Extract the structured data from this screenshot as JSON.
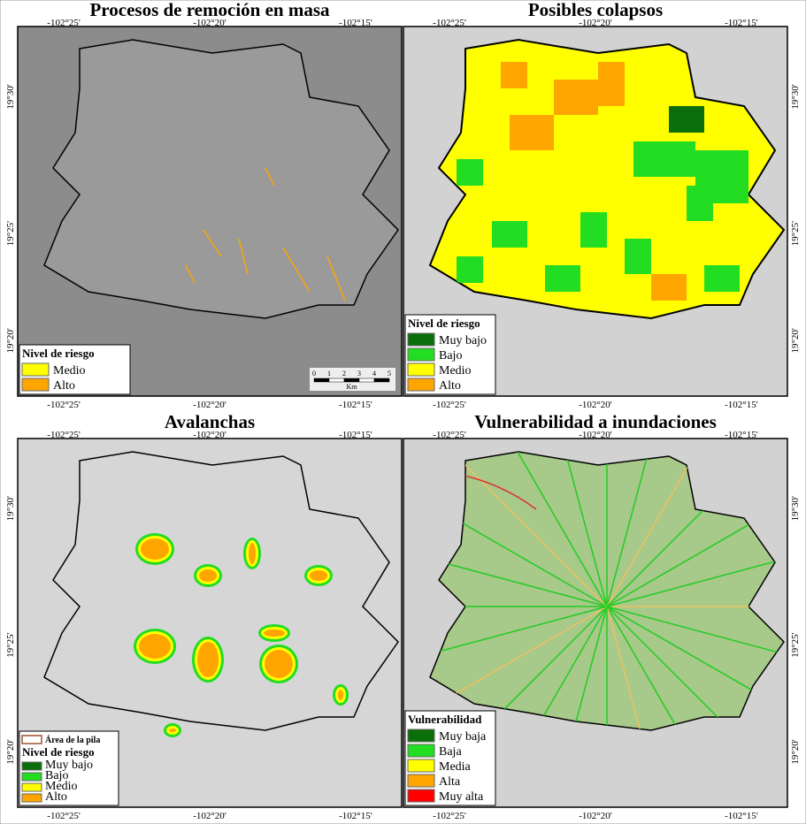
{
  "panels": [
    {
      "title": "Procesos de remoción en masa",
      "top_ticks": [
        "-102°25'",
        "-102°20'",
        "-102°15'"
      ],
      "bottom_ticks": [
        "-102°25'",
        "-102°20'",
        "-102°15'"
      ],
      "side_ticks": [
        "19°30'",
        "19°25'",
        "19°20'"
      ],
      "legend": {
        "title": "Nivel de riesgo",
        "items": [
          {
            "label": "Medio",
            "color": "#ffff00"
          },
          {
            "label": "Alto",
            "color": "#ffa500"
          }
        ]
      },
      "scale": {
        "ticks": [
          "0",
          "1",
          "2",
          "3",
          "4",
          "5"
        ],
        "unit": "Km"
      }
    },
    {
      "title": "Posibles colapsos",
      "top_ticks": [
        "-102°25'",
        "-102°20'",
        "-102°15'"
      ],
      "bottom_ticks": [
        "-102°25'",
        "-102°20'",
        "-102°15'"
      ],
      "side_ticks": [
        "19°30'",
        "19°25'",
        "19°20'"
      ],
      "legend": {
        "title": "Nivel de riesgo",
        "items": [
          {
            "label": "Muy bajo",
            "color": "#0a6e0a"
          },
          {
            "label": "Bajo",
            "color": "#22dd22"
          },
          {
            "label": "Medio",
            "color": "#ffff00"
          },
          {
            "label": "Alto",
            "color": "#ffa500"
          }
        ]
      }
    },
    {
      "title": "Avalanchas",
      "top_ticks": [
        "-102°25'",
        "-102°20'",
        "-102°15'"
      ],
      "bottom_ticks": [
        "-102°25'",
        "-102°20'",
        "-102°15'"
      ],
      "side_ticks": [
        "19°30'",
        "19°25'",
        "19°20'"
      ],
      "pile": {
        "label": "Área de la pila",
        "color": "#a0522d"
      },
      "legend": {
        "title": "Nivel de riesgo",
        "items": [
          {
            "label": "Muy bajo",
            "color": "#0a6e0a"
          },
          {
            "label": "Bajo",
            "color": "#22dd22"
          },
          {
            "label": "Medio",
            "color": "#ffff00"
          },
          {
            "label": "Alto",
            "color": "#ffa500"
          }
        ]
      }
    },
    {
      "title": "Vulnerabilidad a inundaciones",
      "top_ticks": [
        "-102°25'",
        "-102°20'",
        "-102°15'"
      ],
      "bottom_ticks": [
        "-102°25'",
        "-102°20'",
        "-102°15'"
      ],
      "side_ticks": [
        "19°30'",
        "19°25'",
        "19°20'"
      ],
      "legend": {
        "title": "Vulnerabilidad",
        "items": [
          {
            "label": "Muy baja",
            "color": "#0a6e0a"
          },
          {
            "label": "Baja",
            "color": "#22dd22"
          },
          {
            "label": "Media",
            "color": "#ffff00"
          },
          {
            "label": "Alta",
            "color": "#ffa500"
          },
          {
            "label": "Muy alta",
            "color": "#ff0000"
          }
        ]
      }
    }
  ]
}
